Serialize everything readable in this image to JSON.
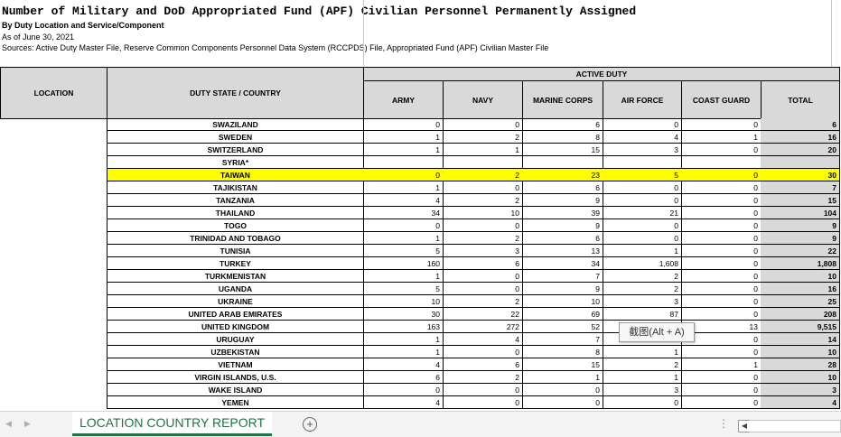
{
  "header": {
    "title": "Number of Military and DoD Appropriated Fund (APF) Civilian Personnel Permanently Assigned",
    "subtitle": "By Duty Location and Service/Component",
    "as_of": "As of June 30, 2021",
    "sources": "Sources: Active Duty Master File, Reserve Common Components Personnel Data System (RCCPDS) File, Appropriated Fund (APF) Civilian Master File"
  },
  "columns": {
    "location": "LOCATION",
    "duty_state": "DUTY STATE / COUNTRY",
    "group": "ACTIVE DUTY",
    "army": "ARMY",
    "navy": "NAVY",
    "marine_corps": "MARINE CORPS",
    "air_force": "AIR FORCE",
    "coast_guard": "COAST GUARD",
    "total": "TOTAL"
  },
  "rows": [
    {
      "country": "SWAZILAND",
      "army": "0",
      "navy": "0",
      "marine": "6",
      "air": "0",
      "coast": "0",
      "total": "6"
    },
    {
      "country": "SWEDEN",
      "army": "1",
      "navy": "2",
      "marine": "8",
      "air": "4",
      "coast": "1",
      "total": "16"
    },
    {
      "country": "SWITZERLAND",
      "army": "1",
      "navy": "1",
      "marine": "15",
      "air": "3",
      "coast": "0",
      "total": "20"
    },
    {
      "country": "SYRIA*",
      "army": "",
      "navy": "",
      "marine": "",
      "air": "",
      "coast": "",
      "total": ""
    },
    {
      "country": "TAIWAN",
      "army": "0",
      "navy": "2",
      "marine": "23",
      "air": "5",
      "coast": "0",
      "total": "30"
    },
    {
      "country": "TAJIKISTAN",
      "army": "1",
      "navy": "0",
      "marine": "6",
      "air": "0",
      "coast": "0",
      "total": "7"
    },
    {
      "country": "TANZANIA",
      "army": "4",
      "navy": "2",
      "marine": "9",
      "air": "0",
      "coast": "0",
      "total": "15"
    },
    {
      "country": "THAILAND",
      "army": "34",
      "navy": "10",
      "marine": "39",
      "air": "21",
      "coast": "0",
      "total": "104"
    },
    {
      "country": "TOGO",
      "army": "0",
      "navy": "0",
      "marine": "9",
      "air": "0",
      "coast": "0",
      "total": "9"
    },
    {
      "country": "TRINIDAD AND TOBAGO",
      "army": "1",
      "navy": "2",
      "marine": "6",
      "air": "0",
      "coast": "0",
      "total": "9"
    },
    {
      "country": "TUNISIA",
      "army": "5",
      "navy": "3",
      "marine": "13",
      "air": "1",
      "coast": "0",
      "total": "22"
    },
    {
      "country": "TURKEY",
      "army": "160",
      "navy": "6",
      "marine": "34",
      "air": "1,608",
      "coast": "0",
      "total": "1,808"
    },
    {
      "country": "TURKMENISTAN",
      "army": "1",
      "navy": "0",
      "marine": "7",
      "air": "2",
      "coast": "0",
      "total": "10"
    },
    {
      "country": "UGANDA",
      "army": "5",
      "navy": "0",
      "marine": "9",
      "air": "2",
      "coast": "0",
      "total": "16"
    },
    {
      "country": "UKRAINE",
      "army": "10",
      "navy": "2",
      "marine": "10",
      "air": "3",
      "coast": "0",
      "total": "25"
    },
    {
      "country": "UNITED ARAB EMIRATES",
      "army": "30",
      "navy": "22",
      "marine": "69",
      "air": "87",
      "coast": "0",
      "total": "208"
    },
    {
      "country": "UNITED KINGDOM",
      "army": "163",
      "navy": "272",
      "marine": "52",
      "air": "",
      "coast": "13",
      "total": "9,515"
    },
    {
      "country": "URUGUAY",
      "army": "1",
      "navy": "4",
      "marine": "7",
      "air": "",
      "coast": "0",
      "total": "14"
    },
    {
      "country": "UZBEKISTAN",
      "army": "1",
      "navy": "0",
      "marine": "8",
      "air": "1",
      "coast": "0",
      "total": "10"
    },
    {
      "country": "VIETNAM",
      "army": "4",
      "navy": "6",
      "marine": "15",
      "air": "2",
      "coast": "1",
      "total": "28"
    },
    {
      "country": "VIRGIN ISLANDS, U.S.",
      "army": "6",
      "navy": "2",
      "marine": "1",
      "air": "1",
      "coast": "0",
      "total": "10"
    },
    {
      "country": "WAKE ISLAND",
      "army": "0",
      "navy": "0",
      "marine": "0",
      "air": "3",
      "coast": "0",
      "total": "3"
    },
    {
      "country": "YEMEN",
      "army": "4",
      "navy": "0",
      "marine": "0",
      "air": "0",
      "coast": "0",
      "total": "4"
    }
  ],
  "highlight_row": "TAIWAN",
  "tooltip": "截图(Alt + A)",
  "sheet_tab": "LOCATION COUNTRY REPORT",
  "add_sheet_symbol": "+",
  "more_symbol": "⋮",
  "colors": {
    "highlight": "#ffff00",
    "header_fill": "#d9d9d9",
    "tab_accent": "#217346"
  }
}
